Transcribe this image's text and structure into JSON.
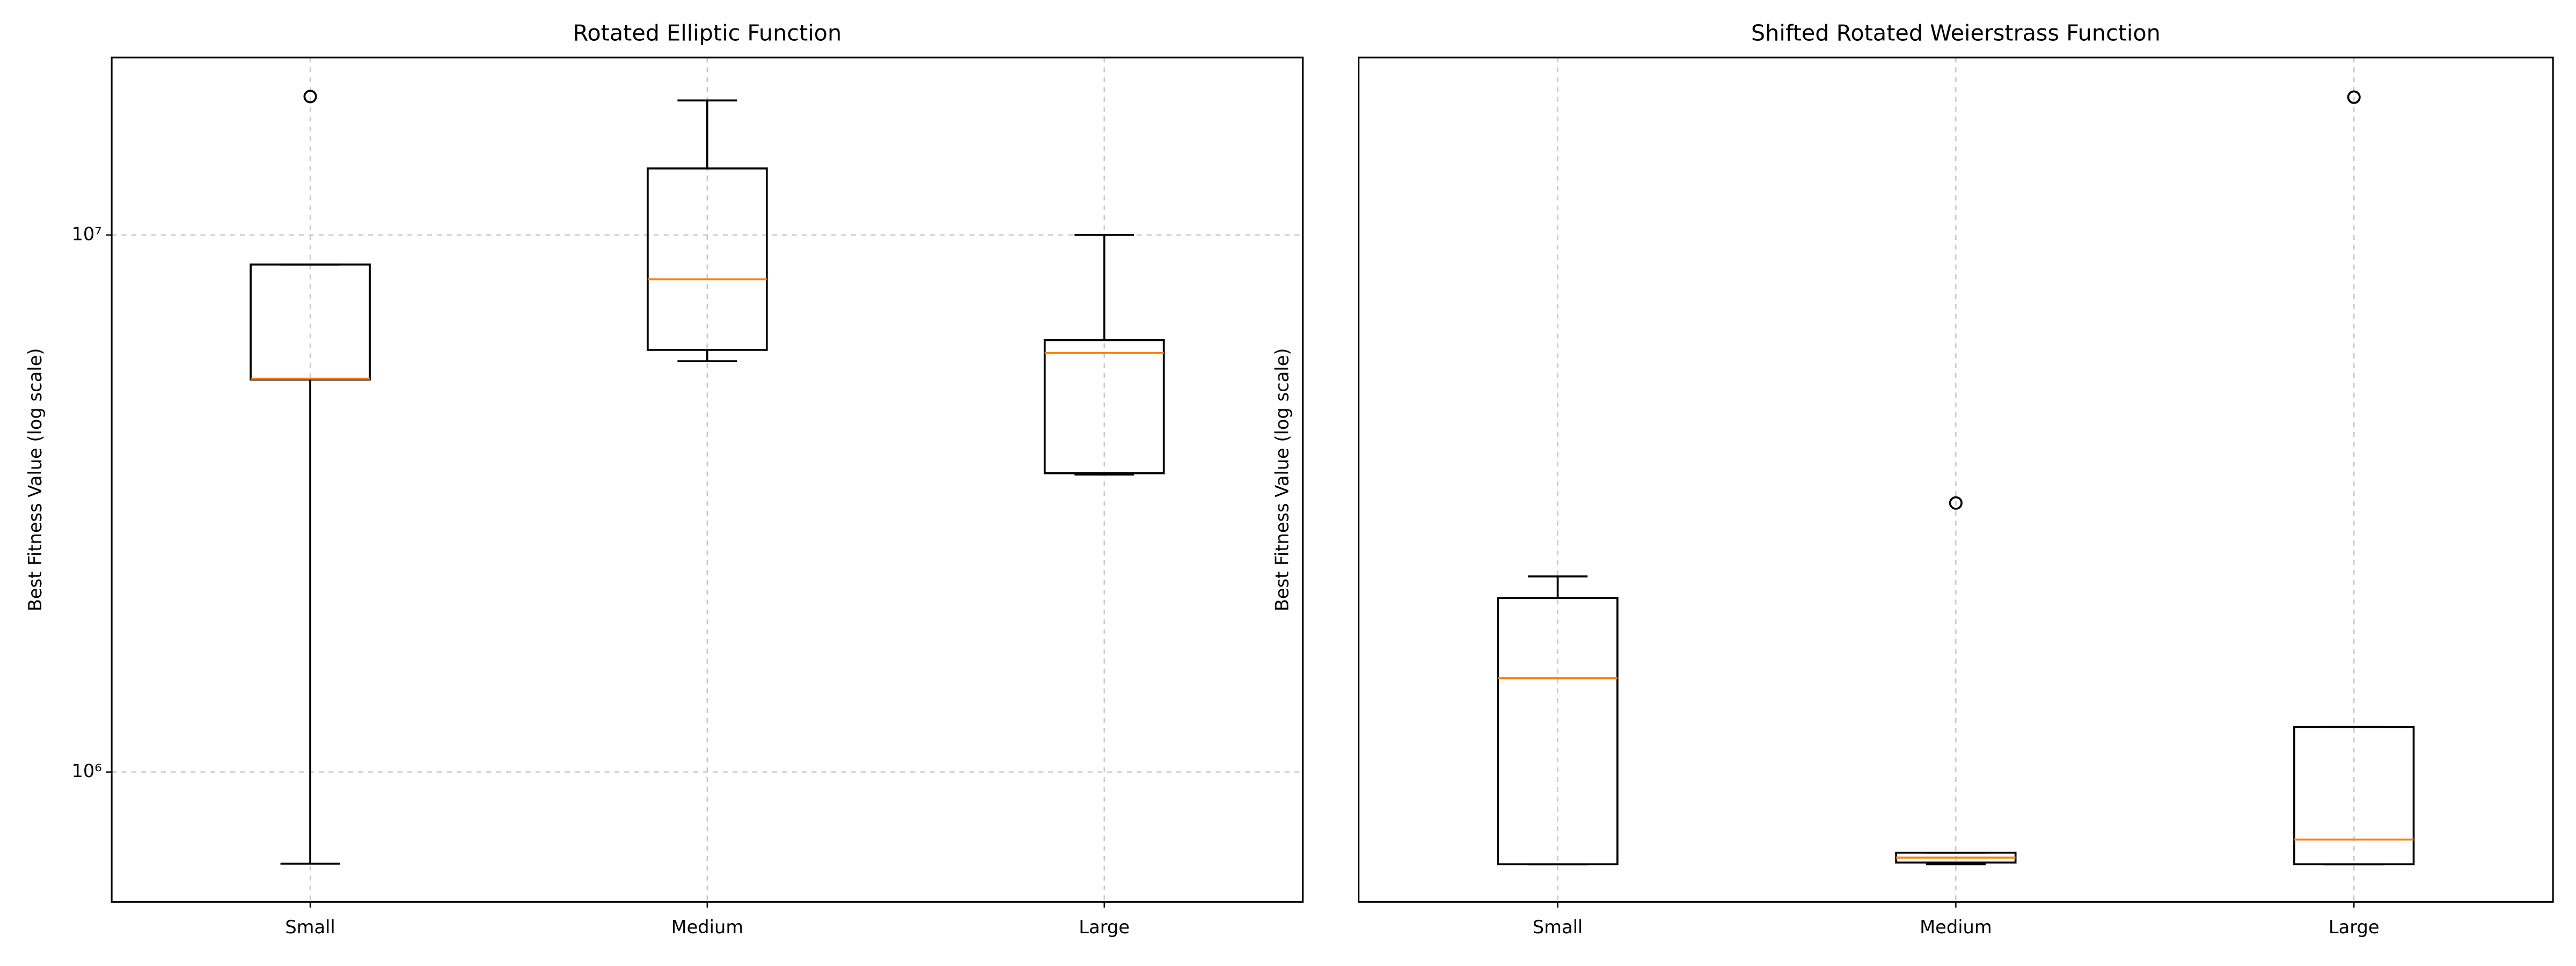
{
  "chart_data": [
    {
      "type": "box",
      "title": "Rotated Elliptic Function",
      "y_label": "Best Fitness Value (log scale)",
      "categories": [
        "Small",
        "Medium",
        "Large"
      ],
      "boxes": [
        {
          "whislo": 675000,
          "q1": 5380000,
          "med": 5400000,
          "q3": 8810000,
          "whishi": 8810000,
          "fliers": [
            18100000
          ]
        },
        {
          "whislo": 5820000,
          "q1": 6110000,
          "med": 8270000,
          "q3": 13300000,
          "whishi": 17800000,
          "fliers": []
        },
        {
          "whislo": 3580000,
          "q1": 3600000,
          "med": 6030000,
          "q3": 6370000,
          "whishi": 10000000,
          "fliers": []
        }
      ],
      "yscale": "log",
      "ylim": [
        573000,
        21400000
      ],
      "yticks": [
        {
          "value": 1000000,
          "label": "10⁶"
        },
        {
          "value": 10000000,
          "label": "10⁷"
        }
      ],
      "grid": true,
      "box_color": "#000000",
      "median_color": "#ff7f0e"
    },
    {
      "type": "box",
      "title": "Shifted Rotated Weierstrass Function",
      "y_label": "Best Fitness Value (log scale)",
      "categories": [
        "Small",
        "Medium",
        "Large"
      ],
      "boxes": [
        {
          "whislo": 20,
          "q1": 20,
          "med": 23.66,
          "q3": 25.44,
          "whishi": 25.94,
          "fliers": []
        },
        {
          "whislo": 20,
          "q1": 20.03,
          "med": 20.12,
          "q3": 20.21,
          "whishi": 20.21,
          "fliers": [
            27.72
          ]
        },
        {
          "whislo": 20,
          "q1": 20,
          "med": 20.45,
          "q3": 22.64,
          "whishi": 22.64,
          "fliers": [
            40
          ]
        }
      ],
      "yscale": "log",
      "ylim": [
        19.33,
        41.46
      ],
      "yticks": [],
      "grid": true,
      "box_color": "#000000",
      "median_color": "#ff7f0e"
    }
  ]
}
